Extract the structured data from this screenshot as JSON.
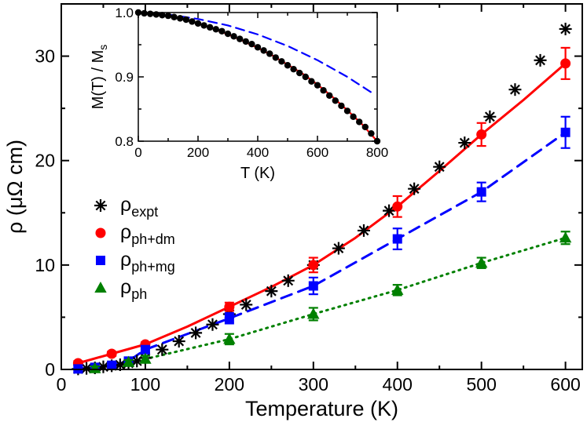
{
  "chart_data": [
    {
      "type": "scatter",
      "xlabel": "Temperature (K)",
      "ylabel": "ρ (μΩ cm)",
      "xlim": [
        0,
        620
      ],
      "ylim": [
        0,
        35
      ],
      "x_ticks": [
        "0",
        "100",
        "200",
        "300",
        "400",
        "500",
        "600"
      ],
      "y_ticks": [
        "0",
        "10",
        "20",
        "30"
      ],
      "legend_placement": "left",
      "series": [
        {
          "name": "ρexpt",
          "name_main": "ρ",
          "name_sub": "expt",
          "color": "#000000",
          "marker": "asterisk",
          "line": "none",
          "x": [
            20,
            30,
            40,
            50,
            60,
            70,
            80,
            90,
            100,
            120,
            140,
            160,
            180,
            200,
            220,
            250,
            270,
            300,
            330,
            360,
            390,
            420,
            450,
            480,
            510,
            540,
            570,
            600
          ],
          "y": [
            0.05,
            0.1,
            0.15,
            0.25,
            0.35,
            0.45,
            0.6,
            0.8,
            1.1,
            1.9,
            2.7,
            3.5,
            4.3,
            5.3,
            6.2,
            7.5,
            8.5,
            10.0,
            11.6,
            13.3,
            15.2,
            17.3,
            19.4,
            21.7,
            24.2,
            26.8,
            29.6,
            32.6
          ]
        },
        {
          "name": "ρph+dm",
          "name_main": "ρ",
          "name_sub": "ph+dm",
          "color": "#ff0000",
          "marker": "circle",
          "line": "solid",
          "x": [
            20,
            60,
            100,
            200,
            300,
            400,
            500,
            600
          ],
          "y": [
            0.6,
            1.5,
            2.4,
            6.0,
            10.0,
            15.6,
            22.5,
            29.3
          ],
          "err": [
            0.2,
            0.2,
            0.2,
            0.4,
            0.7,
            1.0,
            1.1,
            1.5
          ],
          "curve_x": [
            20,
            60,
            100,
            150,
            200,
            250,
            300,
            350,
            400,
            450,
            500,
            550,
            600
          ],
          "curve_y": [
            0.6,
            1.5,
            2.4,
            4.1,
            6.0,
            7.9,
            10.0,
            12.6,
            15.6,
            19.0,
            22.5,
            25.8,
            29.3
          ]
        },
        {
          "name": "ρph+mg",
          "name_main": "ρ",
          "name_sub": "ph+mg",
          "color": "#0000ff",
          "marker": "square",
          "line": "dashed",
          "x": [
            20,
            40,
            60,
            80,
            100,
            200,
            300,
            400,
            500,
            600
          ],
          "y": [
            0.05,
            0.2,
            0.4,
            0.8,
            1.9,
            4.9,
            8.0,
            12.5,
            17.0,
            22.7
          ],
          "err": [
            0.2,
            0.2,
            0.2,
            0.2,
            0.3,
            0.5,
            0.8,
            1.0,
            0.9,
            1.5
          ]
        },
        {
          "name": "ρph",
          "name_main": "ρ",
          "name_sub": "ph",
          "color": "#008000",
          "marker": "triangle",
          "line": "dotted",
          "x": [
            40,
            80,
            100,
            200,
            300,
            400,
            500,
            600
          ],
          "y": [
            0.1,
            0.7,
            1.0,
            2.9,
            5.3,
            7.6,
            10.2,
            12.6
          ],
          "err": [
            0.2,
            0.2,
            0.3,
            0.5,
            0.6,
            0.5,
            0.5,
            0.6
          ]
        }
      ]
    },
    {
      "type": "scatter",
      "position": "inset",
      "xlabel": "T (K)",
      "ylabel": "M(T) / Ms",
      "ylabel_main": "M(T) / M",
      "ylabel_sub": "s",
      "xlim": [
        0,
        800
      ],
      "ylim": [
        0.8,
        1.0
      ],
      "x_ticks": [
        "0",
        "200",
        "400",
        "600",
        "800"
      ],
      "y_ticks": [
        "0.8",
        "0.9",
        "1.0"
      ],
      "series": [
        {
          "color": "#000000",
          "marker": "circle",
          "line": "none",
          "x": [
            0,
            20,
            40,
            60,
            80,
            100,
            120,
            140,
            160,
            180,
            200,
            220,
            240,
            260,
            280,
            300,
            320,
            340,
            360,
            380,
            400,
            420,
            440,
            460,
            480,
            500,
            520,
            540,
            560,
            580,
            600,
            620,
            640,
            660,
            680,
            700,
            720,
            740,
            760,
            780,
            800
          ],
          "y": [
            1.0,
            0.9988,
            0.998,
            0.997,
            0.996,
            0.995,
            0.993,
            0.991,
            0.989,
            0.986,
            0.983,
            0.98,
            0.977,
            0.974,
            0.971,
            0.967,
            0.963,
            0.959,
            0.955,
            0.951,
            0.946,
            0.941,
            0.936,
            0.93,
            0.924,
            0.918,
            0.912,
            0.906,
            0.9,
            0.893,
            0.887,
            0.879,
            0.871,
            0.863,
            0.855,
            0.847,
            0.838,
            0.83,
            0.822,
            0.812,
            0.8
          ]
        },
        {
          "color": "#ff0000",
          "marker": "none",
          "line": "solid",
          "x": [
            0,
            50,
            100,
            150,
            200,
            250,
            300,
            350,
            400,
            450,
            500,
            550,
            600,
            650,
            700,
            750,
            800
          ],
          "y": [
            1.0,
            0.998,
            0.995,
            0.99,
            0.983,
            0.975,
            0.966,
            0.956,
            0.945,
            0.933,
            0.919,
            0.905,
            0.888,
            0.869,
            0.848,
            0.826,
            0.8
          ]
        },
        {
          "color": "#0000ff",
          "marker": "none",
          "line": "dashed",
          "x": [
            0,
            100,
            200,
            300,
            400,
            500,
            600,
            700,
            780
          ],
          "y": [
            1.0,
            0.997,
            0.99,
            0.98,
            0.966,
            0.948,
            0.926,
            0.9,
            0.876
          ]
        }
      ]
    }
  ]
}
